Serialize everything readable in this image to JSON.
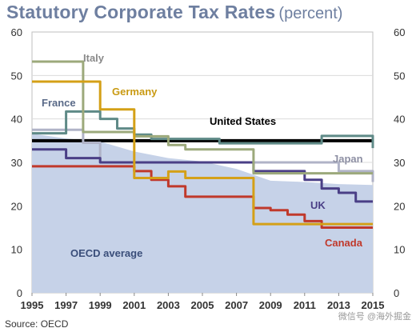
{
  "title": "Statutory Corporate Tax Rates",
  "title_unit": "(percent)",
  "source": "Source: OECD",
  "watermark": "微信号 @海外掘金",
  "chart_data": {
    "type": "line",
    "ylim": [
      0,
      60
    ],
    "xlim": [
      1995,
      2015
    ],
    "yticks": [
      0,
      10,
      20,
      30,
      40,
      50,
      60
    ],
    "xticks": [
      "1995",
      "1997",
      "1999",
      "2001",
      "2003",
      "2005",
      "2007",
      "2009",
      "2011",
      "2013",
      "2015"
    ],
    "grid": true,
    "area": {
      "name": "OECD average",
      "color": "#c6d2e8",
      "x": [
        1995,
        1997,
        1999,
        2001,
        2003,
        2005,
        2007,
        2009,
        2011,
        2013,
        2015
      ],
      "values": [
        36.6,
        35.5,
        34.8,
        32.5,
        31.0,
        30.2,
        28.5,
        25.8,
        25.5,
        25.0,
        24.8
      ]
    },
    "series": [
      {
        "name": "United States",
        "color": "#000000",
        "width": 4,
        "x": [
          1995,
          2015
        ],
        "values": [
          35,
          35
        ]
      },
      {
        "name": "Japan",
        "color": "#b0b3c7",
        "width": 3,
        "x": [
          1995,
          1997,
          1998,
          1999,
          2011,
          2012,
          2013,
          2014,
          2015
        ],
        "values": [
          37.5,
          37.5,
          34.5,
          30,
          30,
          30,
          28,
          28,
          25.5
        ]
      },
      {
        "name": "France",
        "color": "#5f8a87",
        "width": 3,
        "x": [
          1995,
          1996,
          1997,
          1998,
          1999,
          2000,
          2001,
          2002,
          2003,
          2006,
          2007,
          2011,
          2012,
          2015
        ],
        "values": [
          36.7,
          36.7,
          41.7,
          41.7,
          40,
          37.8,
          36.4,
          35.4,
          35.4,
          34.4,
          34.4,
          34.4,
          36.1,
          33.3
        ]
      },
      {
        "name": "UK",
        "color": "#4a3f86",
        "width": 3,
        "x": [
          1995,
          1996,
          1997,
          1999,
          2008,
          2011,
          2012,
          2013,
          2014,
          2015
        ],
        "values": [
          33,
          33,
          31,
          30,
          28,
          26,
          24,
          23,
          21,
          21
        ]
      },
      {
        "name": "Italy",
        "color": "#9ca97b",
        "width": 3,
        "x": [
          1995,
          1996,
          1997,
          1998,
          2001,
          2002,
          2003,
          2004,
          2008,
          2015
        ],
        "values": [
          53.2,
          53.2,
          53.2,
          37,
          36,
          36,
          34,
          33,
          27.5,
          27.5
        ]
      },
      {
        "name": "Canada",
        "color": "#c0392b",
        "width": 3,
        "x": [
          1995,
          2000,
          2001,
          2002,
          2003,
          2004,
          2007,
          2008,
          2009,
          2010,
          2011,
          2012,
          2015
        ],
        "values": [
          29.1,
          29.1,
          28,
          26,
          24.5,
          22.1,
          22.1,
          19.5,
          19,
          18,
          16.5,
          15,
          15
        ]
      },
      {
        "name": "Germany",
        "color": "#d4a017",
        "width": 3,
        "x": [
          1995,
          1998,
          1999,
          2000,
          2001,
          2003,
          2004,
          2008,
          2015
        ],
        "values": [
          48.6,
          48.6,
          42.2,
          42.2,
          26.4,
          27.9,
          26.4,
          15.8,
          15.8
        ]
      }
    ],
    "labels": [
      {
        "text": "Italy",
        "series": "Italy",
        "color": "#8a8a8a"
      },
      {
        "text": "Germany",
        "series": "Germany",
        "color": "#c99a12"
      },
      {
        "text": "France",
        "series": "France",
        "color": "#5a6a88"
      },
      {
        "text": "United States",
        "series": "United States",
        "color": "#000000"
      },
      {
        "text": "Japan",
        "series": "Japan",
        "color": "#8d8fa3"
      },
      {
        "text": "UK",
        "series": "UK",
        "color": "#4a3f86"
      },
      {
        "text": "Canada",
        "series": "Canada",
        "color": "#c0392b"
      },
      {
        "text": "OECD average",
        "series": "OECD average",
        "color": "#3a4e7a"
      }
    ]
  }
}
